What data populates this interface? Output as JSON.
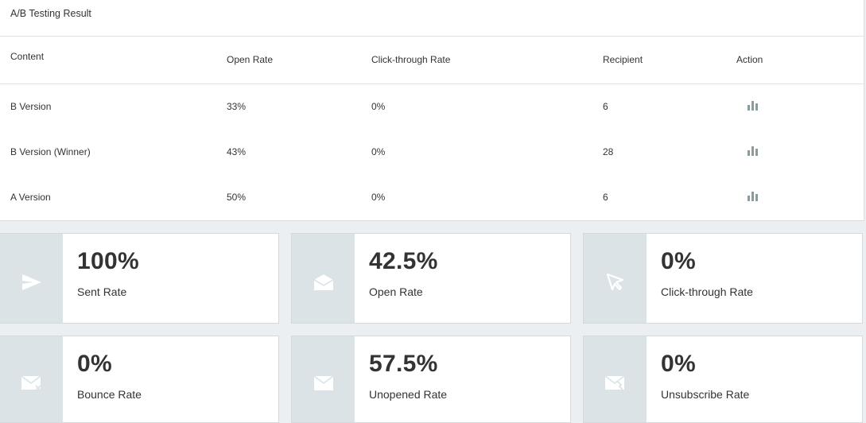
{
  "ab_panel": {
    "title": "A/B Testing Result",
    "columns": [
      "Content",
      "Open Rate",
      "Click-through Rate",
      "Recipient",
      "Action"
    ],
    "rows": [
      {
        "content": "B Version",
        "open_rate": "33%",
        "ctr": "0%",
        "recipient": "6"
      },
      {
        "content": "B Version (Winner)",
        "open_rate": "43%",
        "ctr": "0%",
        "recipient": "28"
      },
      {
        "content": "A Version",
        "open_rate": "50%",
        "ctr": "0%",
        "recipient": "6"
      }
    ],
    "action_icon": "bar-chart-icon",
    "icon_color": "#8d9a9e"
  },
  "stats": [
    {
      "value": "100%",
      "label": "Sent Rate",
      "icon": "send-icon"
    },
    {
      "value": "42.5%",
      "label": "Open Rate",
      "icon": "open-envelope-icon"
    },
    {
      "value": "0%",
      "label": "Click-through Rate",
      "icon": "cursor-icon"
    },
    {
      "value": "0%",
      "label": "Bounce Rate",
      "icon": "bounce-mail-icon"
    },
    {
      "value": "57.5%",
      "label": "Unopened Rate",
      "icon": "envelope-icon"
    },
    {
      "value": "0%",
      "label": "Unsubscribe Rate",
      "icon": "unsubscribe-mail-icon"
    }
  ]
}
